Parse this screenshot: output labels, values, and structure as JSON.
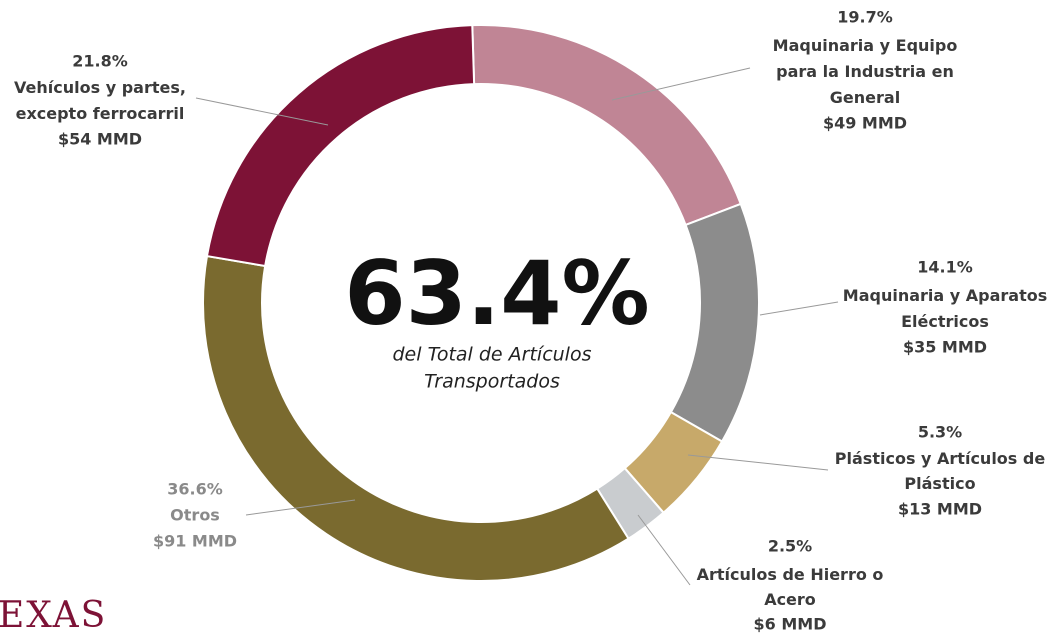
{
  "chart_data": {
    "type": "pie",
    "donut": true,
    "categories": [
      "Maquinaria y Equipo\npara la Industria en\nGeneral",
      "Maquinaria y Aparatos\nEléctricos",
      "Plásticos y Artículos de\nPlástico",
      "Artículos de Hierro o\nAcero",
      "Otros",
      "Vehículos y partes,\nexcepto ferrocarril"
    ],
    "values": [
      19.7,
      14.1,
      5.3,
      2.5,
      36.6,
      21.8
    ],
    "value_labels": [
      "19.7%",
      "14.1%",
      "5.3%",
      "2.5%",
      "36.6%",
      "21.8%"
    ],
    "amount_labels": [
      "$49 MMD",
      "$35 MMD",
      "$13 MMD",
      "$6 MMD",
      "$91 MMD",
      "$54 MMD"
    ],
    "colors": [
      "#c08595",
      "#8c8c8c",
      "#c7a96a",
      "#c9cccf",
      "#7a6a2f",
      "#7d1236"
    ],
    "center_label": "63.4%",
    "center_caption": [
      "del Total de Artículos",
      "Transportados"
    ]
  },
  "logo": "EXAS"
}
